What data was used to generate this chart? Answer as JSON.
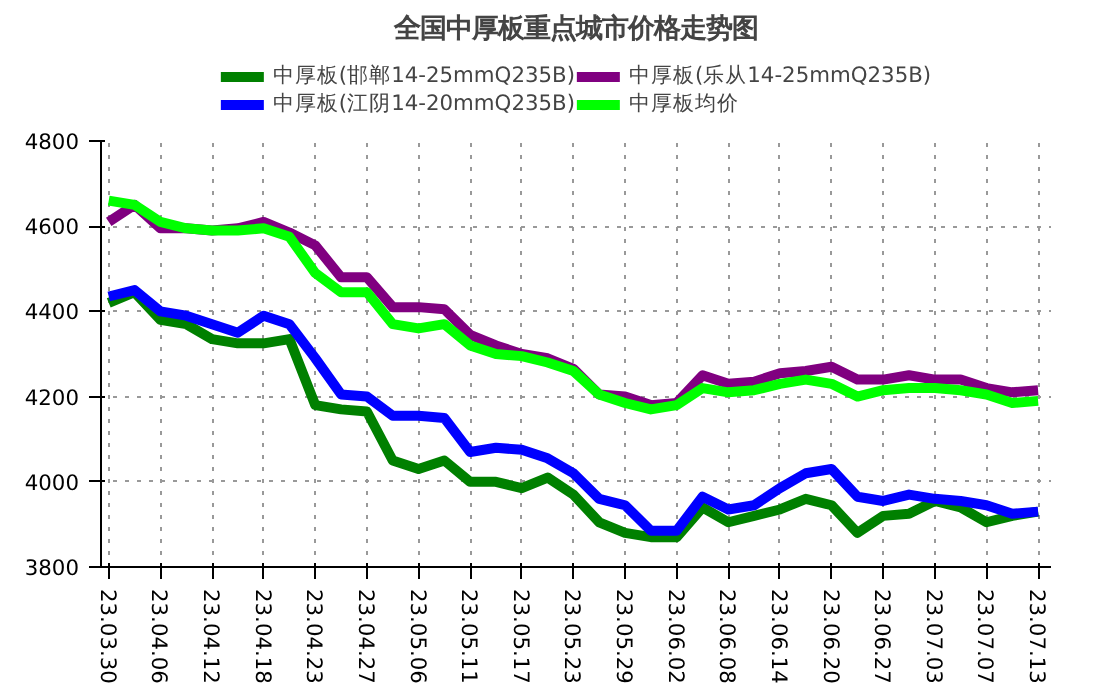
{
  "chart_data": {
    "type": "line",
    "title": "全国中厚板重点城市价格走势图",
    "categories": [
      "23.03.30",
      null,
      "23.04.06",
      null,
      "23.04.12",
      null,
      "23.04.18",
      null,
      "23.04.23",
      null,
      "23.04.27",
      null,
      "23.05.06",
      null,
      "23.05.11",
      null,
      "23.05.17",
      null,
      "23.05.23",
      null,
      "23.05.29",
      null,
      "23.06.02",
      null,
      "23.06.08",
      null,
      "23.06.14",
      null,
      "23.06.20",
      null,
      "23.06.27",
      null,
      "23.07.03",
      null,
      "23.07.07",
      null,
      "23.07.13"
    ],
    "series": [
      {
        "name": "中厚板(邯郸14-25mmQ235B)",
        "color": "#008000",
        "values": [
          4420,
          4445,
          4380,
          4370,
          4335,
          4325,
          4325,
          4335,
          4180,
          4170,
          4165,
          4050,
          4030,
          4050,
          4000,
          4000,
          3985,
          4010,
          3970,
          3905,
          3880,
          3870,
          3870,
          3940,
          3905,
          3920,
          3935,
          3960,
          3945,
          3880,
          3920,
          3925,
          3955,
          3940,
          3905,
          3920,
          3930
        ]
      },
      {
        "name": "中厚板(江阴14-20mmQ235B)",
        "color": "#0000ff",
        "values": [
          4435,
          4450,
          4400,
          4390,
          4370,
          4350,
          4390,
          4370,
          4290,
          4205,
          4200,
          4155,
          4155,
          4150,
          4070,
          4080,
          4075,
          4055,
          4020,
          3960,
          3945,
          3885,
          3885,
          3965,
          3935,
          3945,
          3985,
          4020,
          4030,
          3965,
          3955,
          3970,
          3960,
          3955,
          3945,
          3925,
          3930
        ]
      },
      {
        "name": "中厚板(乐从14-25mmQ235B)",
        "color": "#800080",
        "values": [
          4610,
          4650,
          4595,
          4595,
          4590,
          4595,
          4610,
          4585,
          4555,
          4480,
          4480,
          4410,
          4410,
          4405,
          4345,
          4320,
          4300,
          4290,
          4265,
          4205,
          4200,
          4180,
          4185,
          4250,
          4230,
          4235,
          4255,
          4260,
          4270,
          4240,
          4240,
          4250,
          4240,
          4240,
          4220,
          4210,
          4215
        ]
      },
      {
        "name": "中厚板均价",
        "color": "#00ff00",
        "values": [
          4660,
          4650,
          4610,
          4595,
          4590,
          4590,
          4595,
          4575,
          4490,
          4445,
          4445,
          4370,
          4360,
          4370,
          4320,
          4300,
          4295,
          4280,
          4260,
          4205,
          4185,
          4170,
          4180,
          4220,
          4210,
          4215,
          4230,
          4240,
          4230,
          4200,
          4215,
          4220,
          4220,
          4215,
          4205,
          4185,
          4190
        ]
      }
    ],
    "ylim": [
      3800,
      4800
    ],
    "yticks": [
      3800,
      4000,
      4200,
      4400,
      4600,
      4800
    ],
    "grid": true,
    "legend": "top",
    "line_style": "solid",
    "marker": "none"
  }
}
